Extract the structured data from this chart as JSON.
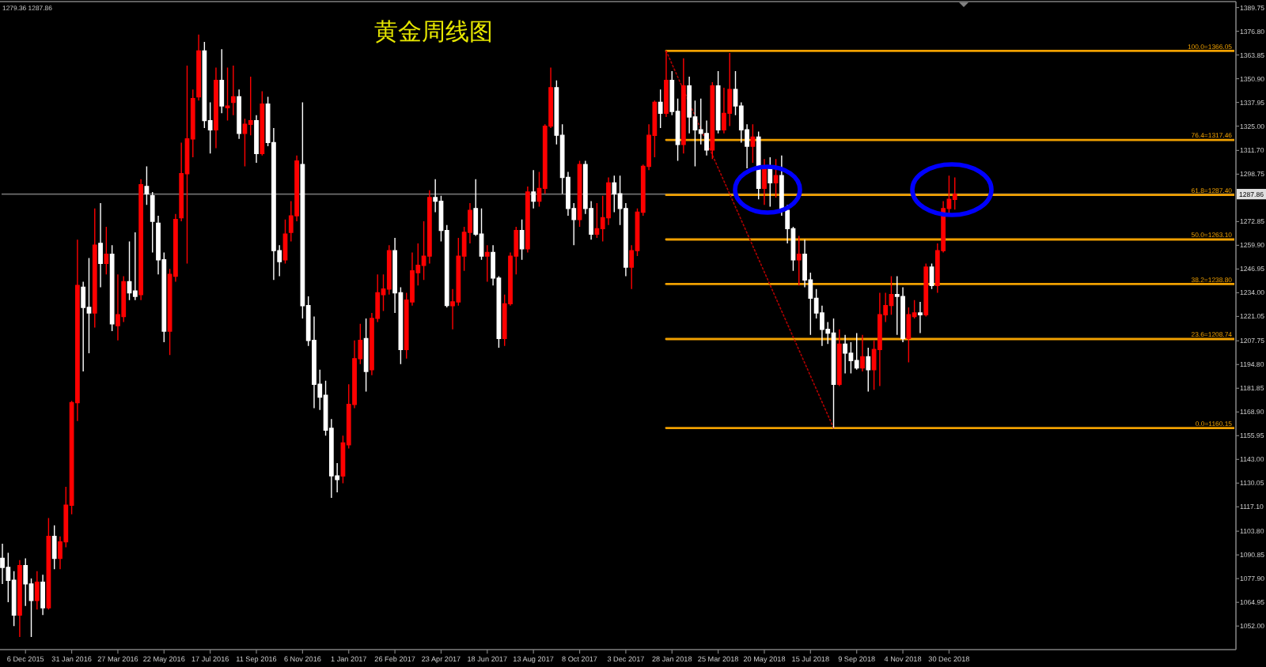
{
  "chart_data": {
    "type": "candlestick",
    "title": "黄金周线图",
    "annotations": [
      "1279.36 1287.86"
    ],
    "x": [
      "2015-11-08",
      "2015-11-15",
      "2015-11-22",
      "2015-11-29",
      "2015-12-06",
      "2015-12-13",
      "2015-12-20",
      "2015-12-27",
      "2016-01-03",
      "2016-01-10",
      "2016-01-17",
      "2016-01-24",
      "2016-01-31",
      "2016-02-07",
      "2016-02-14",
      "2016-02-21",
      "2016-02-28",
      "2016-03-06",
      "2016-03-13",
      "2016-03-20",
      "2016-03-27",
      "2016-04-03",
      "2016-04-10",
      "2016-04-17",
      "2016-04-24",
      "2016-05-01",
      "2016-05-08",
      "2016-05-15",
      "2016-05-22",
      "2016-05-29",
      "2016-06-05",
      "2016-06-12",
      "2016-06-19",
      "2016-06-26",
      "2016-07-03",
      "2016-07-10",
      "2016-07-17",
      "2016-07-24",
      "2016-07-31",
      "2016-08-07",
      "2016-08-14",
      "2016-08-21",
      "2016-08-28",
      "2016-09-04",
      "2016-09-11",
      "2016-09-18",
      "2016-09-25",
      "2016-10-02",
      "2016-10-09",
      "2016-10-16",
      "2016-10-23",
      "2016-10-30",
      "2016-11-06",
      "2016-11-13",
      "2016-11-20",
      "2016-11-27",
      "2016-12-04",
      "2016-12-11",
      "2016-12-18",
      "2016-12-25",
      "2017-01-01",
      "2017-01-08",
      "2017-01-15",
      "2017-01-22",
      "2017-01-29",
      "2017-02-05",
      "2017-02-12",
      "2017-02-19",
      "2017-02-26",
      "2017-03-05",
      "2017-03-12",
      "2017-03-19",
      "2017-03-26",
      "2017-04-02",
      "2017-04-09",
      "2017-04-16",
      "2017-04-23",
      "2017-04-30",
      "2017-05-07",
      "2017-05-14",
      "2017-05-21",
      "2017-05-28",
      "2017-06-04",
      "2017-06-11",
      "2017-06-18",
      "2017-06-25",
      "2017-07-02",
      "2017-07-09",
      "2017-07-16",
      "2017-07-23",
      "2017-07-30",
      "2017-08-06",
      "2017-08-13",
      "2017-08-20",
      "2017-08-27",
      "2017-09-03",
      "2017-09-10",
      "2017-09-17",
      "2017-09-24",
      "2017-10-01",
      "2017-10-08",
      "2017-10-15",
      "2017-10-22",
      "2017-10-29",
      "2017-11-05",
      "2017-11-12",
      "2017-11-19",
      "2017-11-26",
      "2017-12-03",
      "2017-12-10",
      "2017-12-17",
      "2017-12-24",
      "2017-12-31",
      "2018-01-07",
      "2018-01-14",
      "2018-01-21",
      "2018-01-28",
      "2018-02-04",
      "2018-02-11",
      "2018-02-18",
      "2018-02-25",
      "2018-03-04",
      "2018-03-11",
      "2018-03-18",
      "2018-03-25",
      "2018-04-01",
      "2018-04-08",
      "2018-04-15",
      "2018-04-22",
      "2018-04-29",
      "2018-05-06",
      "2018-05-13",
      "2018-05-20",
      "2018-05-27",
      "2018-06-03",
      "2018-06-10",
      "2018-06-17",
      "2018-06-24",
      "2018-07-01",
      "2018-07-08",
      "2018-07-15",
      "2018-07-22",
      "2018-07-29",
      "2018-08-05",
      "2018-08-12",
      "2018-08-19",
      "2018-08-26",
      "2018-09-02",
      "2018-09-09",
      "2018-09-16",
      "2018-09-23",
      "2018-09-30",
      "2018-10-07",
      "2018-10-14",
      "2018-10-21",
      "2018-10-28",
      "2018-11-04",
      "2018-11-11",
      "2018-11-18",
      "2018-11-25",
      "2018-12-02",
      "2018-12-09",
      "2018-12-16",
      "2018-12-23",
      "2018-12-30",
      "2019-01-06"
    ],
    "ohlc": [
      [
        1089,
        1097,
        1075,
        1084
      ],
      [
        1084,
        1092,
        1065,
        1077
      ],
      [
        1077,
        1082,
        1052,
        1058
      ],
      [
        1058,
        1088,
        1046,
        1085
      ],
      [
        1085,
        1089,
        1063,
        1075
      ],
      [
        1075,
        1078,
        1046,
        1066
      ],
      [
        1066,
        1082,
        1061,
        1076
      ],
      [
        1076,
        1080,
        1058,
        1062
      ],
      [
        1062,
        1111,
        1061,
        1101
      ],
      [
        1101,
        1107,
        1083,
        1089
      ],
      [
        1089,
        1101,
        1083,
        1098
      ],
      [
        1098,
        1128,
        1095,
        1118
      ],
      [
        1118,
        1175,
        1113,
        1174
      ],
      [
        1174,
        1263,
        1164,
        1238
      ],
      [
        1237,
        1240,
        1191,
        1226
      ],
      [
        1226,
        1253,
        1201,
        1223
      ],
      [
        1223,
        1280,
        1215,
        1260
      ],
      [
        1261,
        1283,
        1237,
        1250
      ],
      [
        1250,
        1270,
        1244,
        1255
      ],
      [
        1255,
        1260,
        1213,
        1217
      ],
      [
        1216,
        1244,
        1208,
        1222
      ],
      [
        1221,
        1243,
        1218,
        1240
      ],
      [
        1240,
        1262,
        1230,
        1234
      ],
      [
        1235,
        1267,
        1230,
        1232
      ],
      [
        1233,
        1296,
        1230,
        1293
      ],
      [
        1292,
        1303,
        1282,
        1288
      ],
      [
        1287,
        1289,
        1256,
        1273
      ],
      [
        1272,
        1276,
        1244,
        1252
      ],
      [
        1252,
        1256,
        1207,
        1213
      ],
      [
        1213,
        1247,
        1200,
        1244
      ],
      [
        1243,
        1277,
        1240,
        1274
      ],
      [
        1275,
        1316,
        1273,
        1299
      ],
      [
        1299,
        1358,
        1250,
        1318
      ],
      [
        1318,
        1345,
        1308,
        1340
      ],
      [
        1341,
        1375,
        1339,
        1366
      ],
      [
        1366,
        1371,
        1324,
        1328
      ],
      [
        1328,
        1338,
        1310,
        1323
      ],
      [
        1323,
        1357,
        1313,
        1350
      ],
      [
        1350,
        1367,
        1332,
        1336
      ],
      [
        1335,
        1357,
        1328,
        1336
      ],
      [
        1338,
        1358,
        1331,
        1341
      ],
      [
        1341,
        1345,
        1318,
        1321
      ],
      [
        1321,
        1329,
        1303,
        1326
      ],
      [
        1326,
        1352,
        1320,
        1328
      ],
      [
        1328,
        1331,
        1305,
        1310
      ],
      [
        1310,
        1344,
        1309,
        1337
      ],
      [
        1337,
        1341,
        1314,
        1316
      ],
      [
        1316,
        1324,
        1241,
        1257
      ],
      [
        1257,
        1260,
        1243,
        1251
      ],
      [
        1252,
        1274,
        1250,
        1266
      ],
      [
        1267,
        1284,
        1262,
        1276
      ],
      [
        1276,
        1309,
        1273,
        1306
      ],
      [
        1304,
        1338,
        1220,
        1227
      ],
      [
        1227,
        1232,
        1205,
        1208
      ],
      [
        1208,
        1221,
        1171,
        1184
      ],
      [
        1184,
        1192,
        1170,
        1177
      ],
      [
        1178,
        1186,
        1156,
        1159
      ],
      [
        1160,
        1165,
        1122,
        1134
      ],
      [
        1134,
        1141,
        1125,
        1132
      ],
      [
        1134,
        1156,
        1130,
        1152
      ],
      [
        1151,
        1184,
        1149,
        1173
      ],
      [
        1173,
        1208,
        1171,
        1198
      ],
      [
        1198,
        1217,
        1195,
        1208
      ],
      [
        1209,
        1220,
        1180,
        1191
      ],
      [
        1192,
        1223,
        1189,
        1220
      ],
      [
        1220,
        1244,
        1218,
        1234
      ],
      [
        1233,
        1244,
        1224,
        1236
      ],
      [
        1236,
        1260,
        1233,
        1257
      ],
      [
        1257,
        1264,
        1223,
        1234
      ],
      [
        1234,
        1237,
        1195,
        1203
      ],
      [
        1203,
        1234,
        1198,
        1230
      ],
      [
        1229,
        1256,
        1227,
        1246
      ],
      [
        1245,
        1261,
        1238,
        1249
      ],
      [
        1249,
        1273,
        1241,
        1254
      ],
      [
        1254,
        1290,
        1250,
        1286
      ],
      [
        1286,
        1296,
        1278,
        1284
      ],
      [
        1284,
        1287,
        1262,
        1268
      ],
      [
        1268,
        1271,
        1226,
        1227
      ],
      [
        1227,
        1236,
        1214,
        1229
      ],
      [
        1229,
        1264,
        1227,
        1254
      ],
      [
        1254,
        1270,
        1246,
        1267
      ],
      [
        1267,
        1283,
        1261,
        1279
      ],
      [
        1280,
        1296,
        1265,
        1266
      ],
      [
        1266,
        1280,
        1252,
        1254
      ],
      [
        1254,
        1260,
        1240,
        1256
      ],
      [
        1256,
        1260,
        1238,
        1242
      ],
      [
        1242,
        1243,
        1204,
        1209
      ],
      [
        1209,
        1233,
        1205,
        1228
      ],
      [
        1228,
        1256,
        1227,
        1254
      ],
      [
        1254,
        1270,
        1244,
        1268
      ],
      [
        1268,
        1274,
        1252,
        1258
      ],
      [
        1258,
        1292,
        1256,
        1289
      ],
      [
        1289,
        1301,
        1280,
        1284
      ],
      [
        1284,
        1300,
        1281,
        1291
      ],
      [
        1291,
        1326,
        1288,
        1325
      ],
      [
        1325,
        1357,
        1324,
        1346
      ],
      [
        1346,
        1350,
        1315,
        1320
      ],
      [
        1320,
        1326,
        1288,
        1297
      ],
      [
        1297,
        1300,
        1276,
        1280
      ],
      [
        1280,
        1283,
        1260,
        1274
      ],
      [
        1274,
        1306,
        1270,
        1304
      ],
      [
        1304,
        1306,
        1277,
        1280
      ],
      [
        1280,
        1284,
        1263,
        1266
      ],
      [
        1266,
        1283,
        1264,
        1269
      ],
      [
        1269,
        1287,
        1262,
        1275
      ],
      [
        1275,
        1297,
        1271,
        1294
      ],
      [
        1294,
        1298,
        1278,
        1288
      ],
      [
        1288,
        1298,
        1271,
        1280
      ],
      [
        1280,
        1283,
        1243,
        1248
      ],
      [
        1248,
        1260,
        1236,
        1257
      ],
      [
        1257,
        1280,
        1254,
        1278
      ],
      [
        1278,
        1304,
        1276,
        1303
      ],
      [
        1303,
        1326,
        1301,
        1320
      ],
      [
        1320,
        1339,
        1308,
        1338
      ],
      [
        1338,
        1345,
        1324,
        1332
      ],
      [
        1332,
        1366.05,
        1330,
        1350
      ],
      [
        1350,
        1355,
        1331,
        1333
      ],
      [
        1333,
        1340,
        1306,
        1315
      ],
      [
        1315,
        1362,
        1310,
        1347
      ],
      [
        1347,
        1352,
        1321,
        1330
      ],
      [
        1330,
        1339,
        1303,
        1323
      ],
      [
        1323,
        1340,
        1315,
        1321
      ],
      [
        1321,
        1328,
        1309,
        1312
      ],
      [
        1312,
        1349,
        1307,
        1347
      ],
      [
        1347,
        1355,
        1321,
        1323
      ],
      [
        1323,
        1346,
        1321,
        1332
      ],
      [
        1332,
        1365,
        1325,
        1345
      ],
      [
        1345,
        1355,
        1331,
        1336
      ],
      [
        1336,
        1338,
        1316,
        1323
      ],
      [
        1323,
        1326,
        1302,
        1314
      ],
      [
        1314,
        1326,
        1305,
        1319
      ],
      [
        1319,
        1322,
        1285,
        1291
      ],
      [
        1291,
        1307,
        1282,
        1302
      ],
      [
        1302,
        1308,
        1281,
        1294
      ],
      [
        1294,
        1307,
        1286,
        1298
      ],
      [
        1298,
        1309,
        1276,
        1279
      ],
      [
        1279,
        1282,
        1261,
        1269
      ],
      [
        1269,
        1270,
        1246,
        1252
      ],
      [
        1252,
        1265,
        1238,
        1255
      ],
      [
        1255,
        1263,
        1237,
        1241
      ],
      [
        1241,
        1245,
        1211,
        1231
      ],
      [
        1231,
        1236,
        1220,
        1223
      ],
      [
        1223,
        1227,
        1205,
        1214
      ],
      [
        1214,
        1218,
        1206,
        1212
      ],
      [
        1212,
        1220,
        1160.15,
        1184
      ],
      [
        1184,
        1214,
        1183,
        1206
      ],
      [
        1206,
        1211,
        1190,
        1201
      ],
      [
        1201,
        1207,
        1190,
        1197
      ],
      [
        1197,
        1212,
        1192,
        1193
      ],
      [
        1193,
        1211,
        1191,
        1199
      ],
      [
        1199,
        1204,
        1180,
        1192
      ],
      [
        1192,
        1208,
        1181,
        1203
      ],
      [
        1203,
        1234,
        1183,
        1222
      ],
      [
        1222,
        1234,
        1218,
        1227
      ],
      [
        1227,
        1243,
        1222,
        1233
      ],
      [
        1233,
        1243,
        1211,
        1232
      ],
      [
        1232,
        1237,
        1207,
        1209
      ],
      [
        1209,
        1226,
        1196,
        1222
      ],
      [
        1221,
        1230,
        1220,
        1223
      ],
      [
        1223,
        1229,
        1212,
        1222
      ],
      [
        1222,
        1250,
        1221,
        1248
      ],
      [
        1248,
        1250,
        1236,
        1238
      ],
      [
        1238,
        1261,
        1234,
        1257
      ],
      [
        1257,
        1284,
        1256,
        1280
      ],
      [
        1280,
        1298,
        1276,
        1285
      ],
      [
        1285,
        1297,
        1279.36,
        1287.86
      ]
    ],
    "colors": [
      "#ffffff",
      "#ffffff",
      "#ffffff",
      "#ff0000",
      "#ffffff",
      "#ffffff",
      "#ff0000",
      "#ffffff",
      "#ff0000",
      "#ffffff",
      "#ff0000",
      "#ff0000",
      "#ff0000",
      "#ff0000",
      "#ffffff",
      "#ffffff",
      "#ff0000",
      "#ffffff",
      "#ff0000",
      "#ffffff",
      "#ff0000",
      "#ff0000",
      "#ffffff",
      "#ffffff",
      "#ff0000",
      "#ffffff",
      "#ffffff",
      "#ffffff",
      "#ffffff",
      "#ff0000",
      "#ff0000",
      "#ff0000",
      "#ff0000",
      "#ff0000",
      "#ff0000",
      "#ffffff",
      "#ffffff",
      "#ff0000",
      "#ffffff",
      "#ff0000",
      "#ff0000",
      "#ffffff",
      "#ff0000",
      "#ff0000",
      "#ffffff",
      "#ff0000",
      "#ffffff",
      "#ffffff",
      "#ffffff",
      "#ff0000",
      "#ff0000",
      "#ff0000",
      "#ffffff",
      "#ffffff",
      "#ffffff",
      "#ffffff",
      "#ffffff",
      "#ffffff",
      "#ffffff",
      "#ff0000",
      "#ff0000",
      "#ff0000",
      "#ff0000",
      "#ffffff",
      "#ff0000",
      "#ff0000",
      "#ff0000",
      "#ff0000",
      "#ffffff",
      "#ffffff",
      "#ff0000",
      "#ff0000",
      "#ff0000",
      "#ff0000",
      "#ff0000",
      "#ffffff",
      "#ffffff",
      "#ffffff",
      "#ff0000",
      "#ff0000",
      "#ff0000",
      "#ff0000",
      "#ffffff",
      "#ffffff",
      "#ff0000",
      "#ffffff",
      "#ffffff",
      "#ff0000",
      "#ff0000",
      "#ff0000",
      "#ffffff",
      "#ff0000",
      "#ffffff",
      "#ff0000",
      "#ff0000",
      "#ff0000",
      "#ffffff",
      "#ffffff",
      "#ffffff",
      "#ffffff",
      "#ff0000",
      "#ffffff",
      "#ffffff",
      "#ff0000",
      "#ff0000",
      "#ff0000",
      "#ffffff",
      "#ffffff",
      "#ffffff",
      "#ff0000",
      "#ff0000",
      "#ff0000",
      "#ff0000",
      "#ff0000",
      "#ffffff",
      "#ff0000",
      "#ffffff",
      "#ffffff",
      "#ff0000",
      "#ffffff",
      "#ffffff",
      "#ffffff",
      "#ffffff",
      "#ff0000",
      "#ffffff",
      "#ff0000",
      "#ff0000",
      "#ffffff",
      "#ffffff",
      "#ffffff",
      "#ff0000",
      "#ffffff",
      "#ff0000",
      "#ffffff",
      "#ff0000",
      "#ffffff",
      "#ffffff",
      "#ffffff",
      "#ff0000",
      "#ffffff",
      "#ffffff",
      "#ffffff",
      "#ffffff",
      "#ffffff",
      "#ffffff",
      "#ff0000",
      "#ffffff",
      "#ffffff",
      "#ffffff",
      "#ff0000",
      "#ffffff",
      "#ff0000",
      "#ff0000",
      "#ff0000",
      "#ff0000",
      "#ffffff",
      "#ffffff",
      "#ff0000",
      "#ff0000",
      "#ffffff",
      "#ff0000",
      "#ffffff",
      "#ff0000",
      "#ff0000",
      "#ff0000",
      "#ff0000"
    ],
    "xlim": [
      "2015-11-07",
      "2019-12-11"
    ],
    "xticks": [
      {
        "value": "2015-12-06",
        "label": "6 Dec 2015"
      },
      {
        "value": "2016-01-31",
        "label": "31 Jan 2016"
      },
      {
        "value": "2016-03-27",
        "label": "27 Mar 2016"
      },
      {
        "value": "2016-05-22",
        "label": "22 May 2016"
      },
      {
        "value": "2016-07-17",
        "label": "17 Jul 2016"
      },
      {
        "value": "2016-09-11",
        "label": "11 Sep 2016"
      },
      {
        "value": "2016-11-06",
        "label": "6 Nov 2016"
      },
      {
        "value": "2017-01-01",
        "label": "1 Jan 2017"
      },
      {
        "value": "2017-02-26",
        "label": "26 Feb 2017"
      },
      {
        "value": "2017-04-23",
        "label": "23 Apr 2017"
      },
      {
        "value": "2017-06-18",
        "label": "18 Jun 2017"
      },
      {
        "value": "2017-08-13",
        "label": "13 Aug 2017"
      },
      {
        "value": "2017-10-08",
        "label": "8 Oct 2017"
      },
      {
        "value": "2017-12-03",
        "label": "3 Dec 2017"
      },
      {
        "value": "2018-01-28",
        "label": "28 Jan 2018"
      },
      {
        "value": "2018-03-25",
        "label": "25 Mar 2018"
      },
      {
        "value": "2018-05-20",
        "label": "20 May 2018"
      },
      {
        "value": "2018-07-15",
        "label": "15 Jul 2018"
      },
      {
        "value": "2018-09-09",
        "label": "9 Sep 2018"
      },
      {
        "value": "2018-11-04",
        "label": "4 Nov 2018"
      },
      {
        "value": "2018-12-30",
        "label": "30 Dec 2018"
      }
    ],
    "ylim": [
      1040,
      1393
    ],
    "yticks": [
      1389.75,
      {
        "value": 1376.8,
        "label": "1376.80"
      },
      1363.85,
      {
        "value": 1350.9,
        "label": "1350.90"
      },
      1337.95,
      {
        "value": 1325,
        "label": "1325.00"
      },
      {
        "value": 1311.7,
        "label": "1311.70"
      },
      1298.75,
      1272.85,
      {
        "value": 1259.9,
        "label": "1259.90"
      },
      1246.95,
      {
        "value": 1234,
        "label": "1234.00"
      },
      1221.05,
      1207.75,
      {
        "value": 1194.8,
        "label": "1194.80"
      },
      1181.85,
      {
        "value": 1168.9,
        "label": "1168.90"
      },
      1155.95,
      {
        "value": 1143,
        "label": "1143.00"
      },
      1130.05,
      {
        "value": 1117.1,
        "label": "1117.10"
      },
      {
        "value": 1103.8,
        "label": "1103.80"
      },
      1090.85,
      {
        "value": 1077.9,
        "label": "1077.90"
      },
      1064.95,
      {
        "value": 1052,
        "label": "1052.00"
      }
    ],
    "ref_lines": [
      {
        "axis": "y",
        "value": 1287.86,
        "label": "1287.86",
        "color": "#6e6e6e"
      }
    ],
    "series": [
      {
        "type": "line",
        "name": "100.0=1366.05",
        "x": [
          "2018-01-21",
          "2019-12-11"
        ],
        "values": [
          1366.05,
          1366.05
        ],
        "color": "#f0a000"
      },
      {
        "type": "line",
        "name": "76.4=1317.46",
        "x": [
          "2018-01-21",
          "2019-12-11"
        ],
        "values": [
          1317.46,
          1317.46
        ],
        "color": "#f0a000"
      },
      {
        "type": "line",
        "name": "61.8=1287.40",
        "x": [
          "2018-01-21",
          "2019-12-11"
        ],
        "values": [
          1287.4,
          1287.4
        ],
        "color": "#f0a000"
      },
      {
        "type": "line",
        "name": "50.0=1263.10",
        "x": [
          "2018-01-21",
          "2019-12-11"
        ],
        "values": [
          1263.1,
          1263.1
        ],
        "color": "#f0a000"
      },
      {
        "type": "line",
        "name": "38.2=1238.80",
        "x": [
          "2018-01-21",
          "2019-12-11"
        ],
        "values": [
          1238.8,
          1238.8
        ],
        "color": "#f0a000"
      },
      {
        "type": "line",
        "name": "23.6=1208.74",
        "x": [
          "2018-01-21",
          "2019-12-11"
        ],
        "values": [
          1208.74,
          1208.74
        ],
        "color": "#f0a000"
      },
      {
        "type": "line",
        "name": "0.0=1160.15",
        "x": [
          "2018-01-21",
          "2019-12-11"
        ],
        "values": [
          1160.15,
          1160.15
        ],
        "color": "#f0a000"
      },
      {
        "type": "line",
        "x": [
          "2018-01-21",
          "2018-08-12"
        ],
        "values": [
          1366.05,
          1160.15
        ],
        "color": "#b00000",
        "line_style": "dotted"
      }
    ]
  }
}
